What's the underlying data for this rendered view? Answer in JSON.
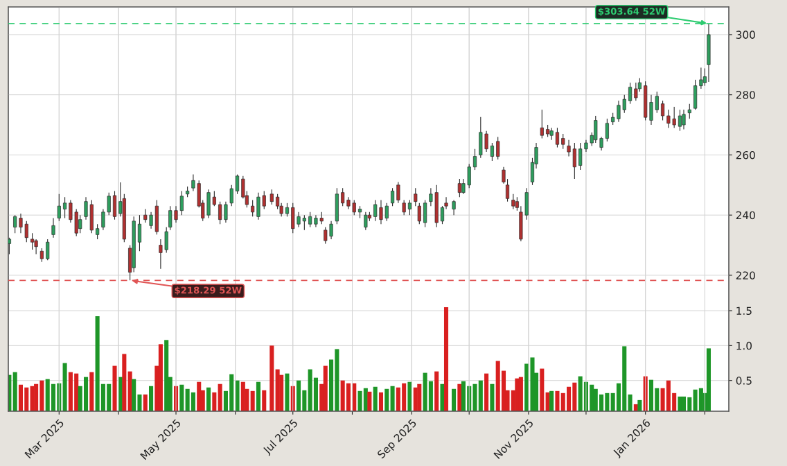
{
  "chart_data": [
    {
      "type": "candlestick",
      "x": [
        "2025-02-03",
        "2025-02-06",
        "2025-02-09",
        "2025-02-12",
        "2025-02-15",
        "2025-02-17",
        "2025-02-20",
        "2025-02-23",
        "2025-02-26",
        "2025-03-01",
        "2025-03-04",
        "2025-03-07",
        "2025-03-10",
        "2025-03-12",
        "2025-03-15",
        "2025-03-18",
        "2025-03-21",
        "2025-03-24",
        "2025-03-27",
        "2025-03-30",
        "2025-04-02",
        "2025-04-04",
        "2025-04-07",
        "2025-04-09",
        "2025-04-12",
        "2025-04-15",
        "2025-04-18",
        "2025-04-21",
        "2025-04-23",
        "2025-04-26",
        "2025-04-28",
        "2025-05-01",
        "2025-05-04",
        "2025-05-07",
        "2025-05-10",
        "2025-05-13",
        "2025-05-15",
        "2025-05-18",
        "2025-05-21",
        "2025-05-24",
        "2025-05-27",
        "2025-05-30",
        "2025-06-02",
        "2025-06-05",
        "2025-06-07",
        "2025-06-10",
        "2025-06-13",
        "2025-06-16",
        "2025-06-20",
        "2025-06-23",
        "2025-06-25",
        "2025-06-28",
        "2025-07-01",
        "2025-07-04",
        "2025-07-07",
        "2025-07-10",
        "2025-07-13",
        "2025-07-16",
        "2025-07-18",
        "2025-07-21",
        "2025-07-24",
        "2025-07-27",
        "2025-07-30",
        "2025-08-02",
        "2025-08-05",
        "2025-08-08",
        "2025-08-10",
        "2025-08-13",
        "2025-08-16",
        "2025-08-19",
        "2025-08-22",
        "2025-08-25",
        "2025-08-28",
        "2025-08-31",
        "2025-09-03",
        "2025-09-05",
        "2025-09-08",
        "2025-09-11",
        "2025-09-14",
        "2025-09-17",
        "2025-09-19",
        "2025-09-23",
        "2025-09-26",
        "2025-09-28",
        "2025-10-01",
        "2025-10-04",
        "2025-10-07",
        "2025-10-10",
        "2025-10-13",
        "2025-10-16",
        "2025-10-19",
        "2025-10-21",
        "2025-10-24",
        "2025-10-26",
        "2025-10-28",
        "2025-10-31",
        "2025-11-03",
        "2025-11-05",
        "2025-11-08",
        "2025-11-11",
        "2025-11-13",
        "2025-11-16",
        "2025-11-19",
        "2025-11-22",
        "2025-11-25",
        "2025-11-28",
        "2025-12-01",
        "2025-12-04",
        "2025-12-06",
        "2025-12-09",
        "2025-12-12",
        "2025-12-15",
        "2025-12-18",
        "2025-12-21",
        "2025-12-24",
        "2025-12-27",
        "2025-12-29",
        "2026-01-01",
        "2026-01-04",
        "2026-01-07",
        "2026-01-10",
        "2026-01-13",
        "2026-01-16",
        "2026-01-19",
        "2026-01-21",
        "2026-01-24",
        "2026-01-27",
        "2026-01-30",
        "2026-02-01",
        "2026-02-03"
      ],
      "ohlc": [
        [
          230.5,
          232.5,
          227,
          232
        ],
        [
          236,
          240,
          234,
          239.5
        ],
        [
          239,
          240.5,
          234,
          236
        ],
        [
          237,
          238,
          231,
          232.5
        ],
        [
          232,
          234,
          228.5,
          231
        ],
        [
          231.5,
          232,
          227,
          229.5
        ],
        [
          228,
          229,
          224.4,
          225.5
        ],
        [
          225.5,
          232,
          225,
          231
        ],
        [
          233.5,
          239,
          232.5,
          236.5
        ],
        [
          239,
          247,
          238,
          243
        ],
        [
          242,
          246,
          239,
          244
        ],
        [
          244,
          245,
          237.5,
          238.5
        ],
        [
          241,
          242,
          233,
          234
        ],
        [
          235.5,
          240,
          234,
          238.5
        ],
        [
          239.5,
          246,
          238.5,
          244.5
        ],
        [
          243.5,
          245,
          234,
          235
        ],
        [
          233.5,
          237,
          232,
          235.5
        ],
        [
          236,
          242,
          235,
          241
        ],
        [
          241,
          247.5,
          240,
          246.3
        ],
        [
          246.5,
          248,
          238.5,
          239.5
        ],
        [
          240.5,
          250.9,
          239.5,
          244.5
        ],
        [
          245.5,
          247,
          231,
          232
        ],
        [
          229,
          230,
          218.29,
          221
        ],
        [
          222.5,
          239.5,
          221,
          238
        ],
        [
          231,
          240,
          228,
          237
        ],
        [
          240,
          242,
          237.5,
          238.5
        ],
        [
          236.5,
          241,
          235.5,
          240
        ],
        [
          243,
          245,
          233.5,
          234.5
        ],
        [
          230,
          232,
          222.1,
          227.5
        ],
        [
          228.5,
          236,
          227.5,
          234.5
        ],
        [
          236,
          243,
          235,
          241.5
        ],
        [
          241.5,
          243,
          237.5,
          238.5
        ],
        [
          241.5,
          248,
          240,
          246.3
        ],
        [
          247,
          249.5,
          246,
          248
        ],
        [
          249,
          253.5,
          248,
          251.5
        ],
        [
          250.5,
          251.5,
          242.5,
          243
        ],
        [
          244,
          245,
          238,
          239
        ],
        [
          240,
          248.5,
          239,
          247.5
        ],
        [
          246,
          248,
          243,
          243.5
        ],
        [
          243.5,
          244.5,
          237,
          238.5
        ],
        [
          238.5,
          244.5,
          237.5,
          243.5
        ],
        [
          244,
          250,
          243,
          248.8
        ],
        [
          248,
          253.5,
          247,
          253
        ],
        [
          252,
          253,
          245.5,
          246
        ],
        [
          246.5,
          248,
          242.5,
          243.5
        ],
        [
          243,
          245,
          239.5,
          241
        ],
        [
          239.5,
          247.5,
          238.5,
          246
        ],
        [
          246.5,
          248,
          242,
          243
        ],
        [
          247,
          248.5,
          243.5,
          244.5
        ],
        [
          246,
          247,
          242,
          243
        ],
        [
          243,
          244,
          239.5,
          240.5
        ],
        [
          240.5,
          244,
          239.5,
          242.5
        ],
        [
          242.5,
          244,
          234,
          235.5
        ],
        [
          237,
          241,
          236,
          239.5
        ],
        [
          238,
          240,
          235,
          239
        ],
        [
          237,
          241,
          236,
          239.5
        ],
        [
          237,
          240,
          236,
          239
        ],
        [
          239,
          241,
          237,
          238
        ],
        [
          235,
          236,
          230.5,
          231.5
        ],
        [
          233,
          238,
          232,
          237
        ],
        [
          238,
          249,
          237,
          247
        ],
        [
          247.5,
          249,
          243,
          244
        ],
        [
          245,
          246,
          242,
          243
        ],
        [
          244,
          245,
          240,
          241
        ],
        [
          241,
          243,
          239,
          242
        ],
        [
          236,
          241,
          235,
          240
        ],
        [
          240,
          241,
          238,
          239
        ],
        [
          239.5,
          245,
          238,
          243.5
        ],
        [
          242.5,
          245,
          237,
          238.5
        ],
        [
          239,
          244,
          238,
          243
        ],
        [
          244,
          249,
          243,
          248
        ],
        [
          250,
          251,
          244,
          245
        ],
        [
          244,
          245,
          240,
          241
        ],
        [
          242,
          245,
          240,
          244
        ],
        [
          247,
          249,
          243,
          244.5
        ],
        [
          243,
          244,
          237,
          238
        ],
        [
          237.5,
          245,
          236,
          244
        ],
        [
          244.5,
          249,
          243,
          247
        ],
        [
          247.5,
          250,
          236,
          237.5
        ],
        [
          238,
          243,
          237,
          242.5
        ],
        [
          244,
          246,
          242,
          243
        ],
        [
          242,
          245,
          240,
          244.5
        ],
        [
          250.5,
          252,
          246,
          247.5
        ],
        [
          247.5,
          252,
          247,
          250.5
        ],
        [
          250,
          257,
          249,
          256
        ],
        [
          256,
          262,
          255,
          259.5
        ],
        [
          260,
          272.6,
          259,
          267.5
        ],
        [
          267,
          268,
          261,
          262
        ],
        [
          259.5,
          264,
          258,
          263
        ],
        [
          264.5,
          266,
          258.5,
          259.5
        ],
        [
          255,
          256,
          250.5,
          251
        ],
        [
          250,
          252,
          244.5,
          245.5
        ],
        [
          245,
          247,
          242,
          243
        ],
        [
          244.5,
          246,
          241.5,
          242.5
        ],
        [
          241,
          243,
          231.3,
          232
        ],
        [
          240,
          249,
          238.5,
          247.5
        ],
        [
          251,
          259,
          250,
          257.5
        ],
        [
          257,
          264,
          255.5,
          262.5
        ],
        [
          269,
          275,
          265.5,
          266.5
        ],
        [
          268.5,
          270,
          266,
          267
        ],
        [
          266.5,
          269,
          265,
          268
        ],
        [
          267.5,
          269,
          262.5,
          263.5
        ],
        [
          265.5,
          267,
          262,
          263.5
        ],
        [
          263,
          265,
          259.5,
          261
        ],
        [
          262,
          264,
          252,
          256
        ],
        [
          256.5,
          264,
          255,
          262
        ],
        [
          262,
          265,
          261,
          264
        ],
        [
          264,
          267.5,
          263,
          266.5
        ],
        [
          265,
          273,
          264,
          271.5
        ],
        [
          262.5,
          266,
          261.5,
          265.5
        ],
        [
          265.5,
          272,
          264.5,
          270.5
        ],
        [
          271,
          274,
          270,
          272.5
        ],
        [
          272,
          278,
          271,
          276.5
        ],
        [
          275,
          280,
          274,
          278.5
        ],
        [
          278,
          284,
          277,
          282.5
        ],
        [
          282,
          284,
          278,
          279
        ],
        [
          282,
          285.5,
          281,
          284
        ],
        [
          283,
          284.5,
          271.5,
          272.5
        ],
        [
          271.5,
          280,
          270,
          277.5
        ],
        [
          275,
          281,
          274,
          279.5
        ],
        [
          277,
          278,
          271.5,
          273
        ],
        [
          273,
          275,
          269,
          270.5
        ],
        [
          272,
          276,
          269,
          270
        ],
        [
          269.5,
          275,
          268,
          273
        ],
        [
          270,
          275,
          268.5,
          273.5
        ],
        [
          274,
          277,
          272,
          275
        ],
        [
          275.5,
          285,
          275,
          283
        ],
        [
          283,
          289,
          282,
          285
        ],
        [
          284,
          288.8,
          283,
          286
        ],
        [
          290,
          303.64,
          284.3,
          300
        ]
      ],
      "colors": [
        "#2e9e5e",
        "#2e9e5e",
        "#b03030",
        "#b03030",
        "#b03030",
        "#b03030",
        "#b03030",
        "#2e9e5e",
        "#2e9e5e",
        "#2e9e5e",
        "#2e9e5e",
        "#b03030",
        "#b03030",
        "#2e9e5e",
        "#2e9e5e",
        "#b03030",
        "#2e9e5e",
        "#2e9e5e",
        "#2e9e5e",
        "#b03030",
        "#2e9e5e",
        "#b03030",
        "#b03030",
        "#2e9e5e",
        "#2e9e5e",
        "#b03030",
        "#2e9e5e",
        "#b03030",
        "#b03030",
        "#2e9e5e",
        "#2e9e5e",
        "#b03030",
        "#2e9e5e",
        "#2e9e5e",
        "#2e9e5e",
        "#b03030",
        "#b03030",
        "#2e9e5e",
        "#b03030",
        "#b03030",
        "#2e9e5e",
        "#2e9e5e",
        "#2e9e5e",
        "#b03030",
        "#b03030",
        "#b03030",
        "#2e9e5e",
        "#b03030",
        "#b03030",
        "#b03030",
        "#b03030",
        "#2e9e5e",
        "#b03030",
        "#2e9e5e",
        "#2e9e5e",
        "#2e9e5e",
        "#2e9e5e",
        "#b03030",
        "#b03030",
        "#2e9e5e",
        "#2e9e5e",
        "#b03030",
        "#b03030",
        "#b03030",
        "#2e9e5e",
        "#2e9e5e",
        "#b03030",
        "#2e9e5e",
        "#b03030",
        "#2e9e5e",
        "#2e9e5e",
        "#b03030",
        "#b03030",
        "#2e9e5e",
        "#b03030",
        "#b03030",
        "#2e9e5e",
        "#2e9e5e",
        "#b03030",
        "#2e9e5e",
        "#b03030",
        "#2e9e5e",
        "#b03030",
        "#2e9e5e",
        "#2e9e5e",
        "#2e9e5e",
        "#2e9e5e",
        "#b03030",
        "#2e9e5e",
        "#b03030",
        "#b03030",
        "#b03030",
        "#b03030",
        "#b03030",
        "#b03030",
        "#2e9e5e",
        "#2e9e5e",
        "#2e9e5e",
        "#b03030",
        "#b03030",
        "#2e9e5e",
        "#b03030",
        "#b03030",
        "#b03030",
        "#b03030",
        "#2e9e5e",
        "#2e9e5e",
        "#2e9e5e",
        "#2e9e5e",
        "#2e9e5e",
        "#2e9e5e",
        "#2e9e5e",
        "#2e9e5e",
        "#2e9e5e",
        "#2e9e5e",
        "#b03030",
        "#2e9e5e",
        "#b03030",
        "#2e9e5e",
        "#2e9e5e",
        "#b03030",
        "#b03030",
        "#b03030",
        "#2e9e5e",
        "#2e9e5e",
        "#2e9e5e",
        "#2e9e5e",
        "#2e9e5e",
        "#2e9e5e",
        "#2e9e5e"
      ],
      "xlim": [
        "2025-02-02T12:00",
        "2026-02-13T12:00"
      ],
      "xticks": [
        {
          "value": "2025-03-01",
          "label": null
        },
        {
          "value": "2025-04-01",
          "label": null
        },
        {
          "value": "2025-05-01",
          "label": null
        },
        {
          "value": "2025-06-01",
          "label": null
        },
        {
          "value": "2025-07-01",
          "label": null
        },
        {
          "value": "2025-08-01",
          "label": null
        },
        {
          "value": "2025-09-01",
          "label": null
        },
        {
          "value": "2025-10-01",
          "label": null
        },
        {
          "value": "2025-11-01",
          "label": null
        },
        {
          "value": "2025-12-01",
          "label": null
        },
        {
          "value": "2026-01-01",
          "label": null
        },
        {
          "value": "2026-02-01",
          "label": null
        }
      ],
      "ylim": [
        174.8,
        309.2
      ],
      "yticks": [
        220,
        240,
        260,
        280,
        300
      ],
      "tick_labels": "y",
      "grid": true,
      "ref_lines": [
        {
          "axis": "y",
          "value": 303.64,
          "color": "#2ecc71",
          "line_style": "dashed",
          "label": "$303.64 52W"
        },
        {
          "axis": "y",
          "value": 218.29,
          "color": "#e05555",
          "line_style": "dashed",
          "label": "$218.29 52W"
        }
      ]
    },
    {
      "type": "bar",
      "x": [
        "2025-02-03",
        "2025-02-06",
        "2025-02-09",
        "2025-02-12",
        "2025-02-15",
        "2025-02-17",
        "2025-02-20",
        "2025-02-23",
        "2025-02-26",
        "2025-03-01",
        "2025-03-04",
        "2025-03-07",
        "2025-03-10",
        "2025-03-12",
        "2025-03-15",
        "2025-03-18",
        "2025-03-21",
        "2025-03-24",
        "2025-03-27",
        "2025-03-30",
        "2025-04-02",
        "2025-04-04",
        "2025-04-07",
        "2025-04-09",
        "2025-04-12",
        "2025-04-15",
        "2025-04-18",
        "2025-04-21",
        "2025-04-23",
        "2025-04-26",
        "2025-04-28",
        "2025-05-01",
        "2025-05-04",
        "2025-05-07",
        "2025-05-10",
        "2025-05-13",
        "2025-05-15",
        "2025-05-18",
        "2025-05-21",
        "2025-05-24",
        "2025-05-27",
        "2025-05-30",
        "2025-06-02",
        "2025-06-05",
        "2025-06-07",
        "2025-06-10",
        "2025-06-13",
        "2025-06-16",
        "2025-06-20",
        "2025-06-23",
        "2025-06-25",
        "2025-06-28",
        "2025-07-01",
        "2025-07-04",
        "2025-07-07",
        "2025-07-10",
        "2025-07-13",
        "2025-07-16",
        "2025-07-18",
        "2025-07-21",
        "2025-07-24",
        "2025-07-27",
        "2025-07-30",
        "2025-08-02",
        "2025-08-05",
        "2025-08-08",
        "2025-08-10",
        "2025-08-13",
        "2025-08-16",
        "2025-08-19",
        "2025-08-22",
        "2025-08-25",
        "2025-08-28",
        "2025-08-31",
        "2025-09-03",
        "2025-09-05",
        "2025-09-08",
        "2025-09-11",
        "2025-09-14",
        "2025-09-17",
        "2025-09-19",
        "2025-09-23",
        "2025-09-26",
        "2025-09-28",
        "2025-10-01",
        "2025-10-04",
        "2025-10-07",
        "2025-10-10",
        "2025-10-13",
        "2025-10-16",
        "2025-10-19",
        "2025-10-21",
        "2025-10-24",
        "2025-10-26",
        "2025-10-28",
        "2025-10-31",
        "2025-11-03",
        "2025-11-05",
        "2025-11-08",
        "2025-11-11",
        "2025-11-13",
        "2025-11-16",
        "2025-11-19",
        "2025-11-22",
        "2025-11-25",
        "2025-11-28",
        "2025-12-01",
        "2025-12-04",
        "2025-12-06",
        "2025-12-09",
        "2025-12-12",
        "2025-12-15",
        "2025-12-18",
        "2025-12-21",
        "2025-12-24",
        "2025-12-27",
        "2025-12-29",
        "2026-01-01",
        "2026-01-04",
        "2026-01-07",
        "2026-01-10",
        "2026-01-13",
        "2026-01-16",
        "2026-01-19",
        "2026-01-21",
        "2026-01-24",
        "2026-01-27",
        "2026-01-30",
        "2026-02-01",
        "2026-02-03"
      ],
      "values": [
        0.58,
        0.62,
        0.44,
        0.4,
        0.42,
        0.45,
        0.5,
        0.52,
        0.45,
        0.46,
        0.75,
        0.62,
        0.6,
        0.42,
        0.55,
        0.62,
        1.42,
        0.45,
        0.45,
        0.71,
        0.55,
        0.88,
        0.63,
        0.52,
        0.3,
        0.3,
        0.42,
        0.71,
        1.02,
        1.08,
        0.55,
        0.42,
        0.44,
        0.38,
        0.33,
        0.48,
        0.36,
        0.4,
        0.33,
        0.45,
        0.35,
        0.59,
        0.5,
        0.48,
        0.38,
        0.35,
        0.48,
        0.36,
        1.0,
        0.66,
        0.58,
        0.6,
        0.42,
        0.5,
        0.36,
        0.66,
        0.54,
        0.45,
        0.71,
        0.8,
        0.95,
        0.5,
        0.46,
        0.46,
        0.35,
        0.39,
        0.34,
        0.41,
        0.33,
        0.38,
        0.42,
        0.4,
        0.46,
        0.48,
        0.4,
        0.45,
        0.61,
        0.49,
        0.63,
        0.45,
        1.55,
        0.38,
        0.45,
        0.49,
        0.42,
        0.45,
        0.5,
        0.6,
        0.45,
        0.78,
        0.64,
        0.36,
        0.36,
        0.53,
        0.55,
        0.74,
        0.83,
        0.61,
        0.67,
        0.33,
        0.35,
        0.35,
        0.32,
        0.41,
        0.47,
        0.56,
        0.48,
        0.44,
        0.38,
        0.3,
        0.32,
        0.32,
        0.46,
        0.99,
        0.3,
        0.16,
        0.22,
        0.56,
        0.51,
        0.39,
        0.39,
        0.5,
        0.32,
        0.27,
        0.27,
        0.26,
        0.37,
        0.39,
        0.32,
        0.96
      ],
      "colors": [
        "#1e9628",
        "#1e9628",
        "#d92020",
        "#d92020",
        "#d92020",
        "#d92020",
        "#d92020",
        "#1e9628",
        "#1e9628",
        "#1e9628",
        "#1e9628",
        "#d92020",
        "#d92020",
        "#1e9628",
        "#1e9628",
        "#d92020",
        "#1e9628",
        "#1e9628",
        "#1e9628",
        "#d92020",
        "#1e9628",
        "#d92020",
        "#d92020",
        "#1e9628",
        "#1e9628",
        "#d92020",
        "#1e9628",
        "#d92020",
        "#d92020",
        "#1e9628",
        "#1e9628",
        "#d92020",
        "#1e9628",
        "#1e9628",
        "#1e9628",
        "#d92020",
        "#d92020",
        "#1e9628",
        "#d92020",
        "#d92020",
        "#1e9628",
        "#1e9628",
        "#1e9628",
        "#d92020",
        "#d92020",
        "#d92020",
        "#1e9628",
        "#d92020",
        "#d92020",
        "#d92020",
        "#d92020",
        "#1e9628",
        "#d92020",
        "#1e9628",
        "#1e9628",
        "#1e9628",
        "#1e9628",
        "#d92020",
        "#d92020",
        "#1e9628",
        "#1e9628",
        "#d92020",
        "#d92020",
        "#d92020",
        "#1e9628",
        "#1e9628",
        "#d92020",
        "#1e9628",
        "#d92020",
        "#1e9628",
        "#1e9628",
        "#d92020",
        "#d92020",
        "#1e9628",
        "#d92020",
        "#d92020",
        "#1e9628",
        "#1e9628",
        "#d92020",
        "#1e9628",
        "#d92020",
        "#1e9628",
        "#d92020",
        "#1e9628",
        "#1e9628",
        "#1e9628",
        "#1e9628",
        "#d92020",
        "#1e9628",
        "#d92020",
        "#d92020",
        "#d92020",
        "#d92020",
        "#d92020",
        "#d92020",
        "#1e9628",
        "#1e9628",
        "#1e9628",
        "#d92020",
        "#d92020",
        "#1e9628",
        "#d92020",
        "#d92020",
        "#d92020",
        "#d92020",
        "#1e9628",
        "#1e9628",
        "#1e9628",
        "#1e9628",
        "#1e9628",
        "#1e9628",
        "#1e9628",
        "#1e9628",
        "#1e9628",
        "#1e9628",
        "#d92020",
        "#1e9628",
        "#d92020",
        "#1e9628",
        "#1e9628",
        "#d92020",
        "#d92020",
        "#d92020",
        "#1e9628",
        "#1e9628",
        "#1e9628",
        "#1e9628",
        "#1e9628",
        "#1e9628",
        "#1e9628"
      ],
      "xlim": [
        "2025-02-02T12:00",
        "2026-02-13T12:00"
      ],
      "xticks": [
        {
          "value": "2025-03-01",
          "label": "Mar 2025"
        },
        {
          "value": "2025-04-01",
          "label": null
        },
        {
          "value": "2025-05-01",
          "label": "May 2025"
        },
        {
          "value": "2025-06-01",
          "label": null
        },
        {
          "value": "2025-07-01",
          "label": "Jul 2025"
        },
        {
          "value": "2025-08-01",
          "label": null
        },
        {
          "value": "2025-09-01",
          "label": "Sep 2025"
        },
        {
          "value": "2025-10-01",
          "label": null
        },
        {
          "value": "2025-11-01",
          "label": "Nov 2025"
        },
        {
          "value": "2025-12-01",
          "label": null
        },
        {
          "value": "2026-01-01",
          "label": "Jan 2026"
        },
        {
          "value": "2026-02-01",
          "label": null
        }
      ],
      "ylim": [
        0.06,
        5.85
      ],
      "yticks": [
        0.5,
        {
          "value": 1,
          "label": "1.0"
        },
        1.5
      ],
      "grid": true
    }
  ]
}
